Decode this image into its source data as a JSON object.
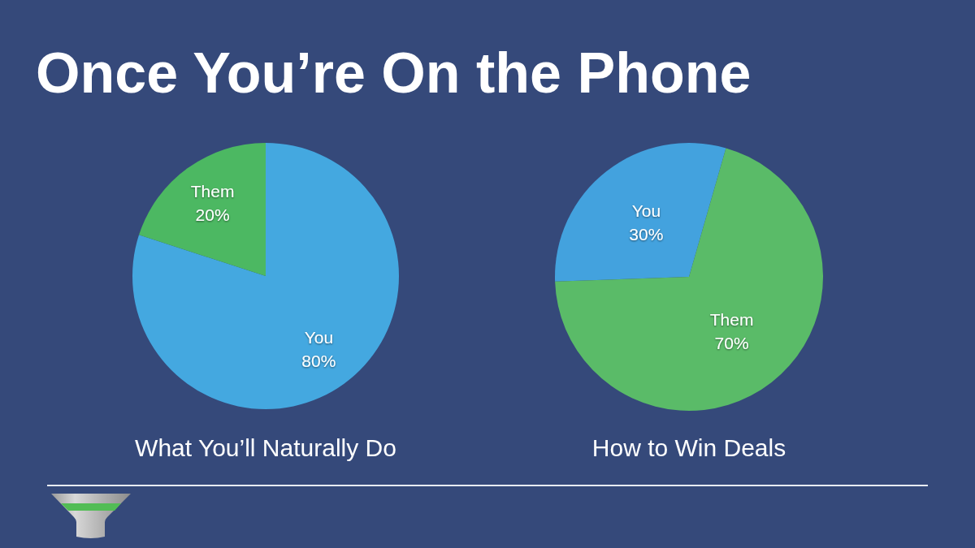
{
  "chart_data": [
    {
      "type": "pie",
      "title": "Once You’re On the Phone",
      "subtitle": "What You’ll Naturally Do",
      "categories": [
        "You",
        "Them"
      ],
      "values": [
        80,
        20
      ],
      "colors": [
        "#44a8e0",
        "#4cb862"
      ],
      "value_labels": [
        "80%",
        "20%"
      ]
    },
    {
      "type": "pie",
      "subtitle": "How to Win Deals",
      "categories": [
        "You",
        "Them"
      ],
      "values": [
        30,
        70
      ],
      "colors": [
        "#43a2de",
        "#5abb68"
      ],
      "value_labels": [
        "30%",
        "70%"
      ]
    }
  ]
}
